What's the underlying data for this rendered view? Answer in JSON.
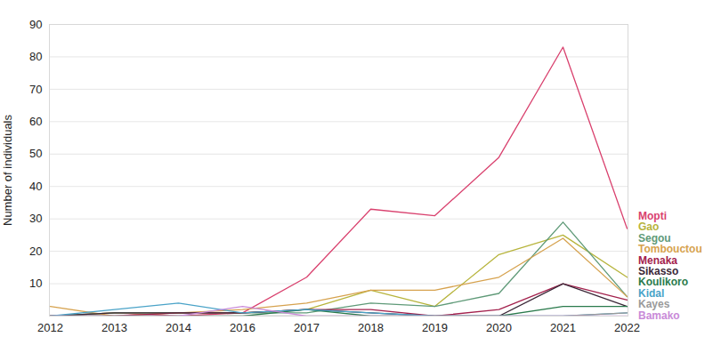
{
  "chart_data": {
    "type": "line",
    "y_label": "Number of individuals",
    "categories": [
      "2012",
      "2013",
      "2014",
      "2016",
      "2017",
      "2018",
      "2019",
      "2020",
      "2021",
      "2022"
    ],
    "series": [
      {
        "name": "Mopti",
        "color": "#d9416e",
        "values": [
          0,
          1,
          0,
          1,
          12,
          33,
          31,
          49,
          83,
          27
        ]
      },
      {
        "name": "Gao",
        "color": "#b7b43c",
        "values": [
          0,
          1,
          1,
          1,
          2,
          8,
          3,
          19,
          25,
          12
        ]
      },
      {
        "name": "Segou",
        "color": "#5f9a78",
        "values": [
          0,
          1,
          1,
          1,
          1,
          4,
          3,
          7,
          29,
          6
        ]
      },
      {
        "name": "Tombouctou",
        "color": "#d6a24e",
        "values": [
          3,
          0,
          1,
          2,
          4,
          8,
          8,
          12,
          24,
          6
        ]
      },
      {
        "name": "Menaka",
        "color": "#a3214d",
        "values": [
          0,
          0,
          1,
          1,
          2,
          2,
          0,
          2,
          10,
          5
        ]
      },
      {
        "name": "Sikasso",
        "color": "#3b2838",
        "values": [
          0,
          1,
          1,
          1,
          2,
          1,
          0,
          0,
          10,
          3
        ]
      },
      {
        "name": "Koulikoro",
        "color": "#2a7a4c",
        "values": [
          0,
          0,
          0,
          0,
          2,
          0,
          0,
          0,
          3,
          3
        ]
      },
      {
        "name": "Kidal",
        "color": "#4aa3c8",
        "values": [
          0,
          2,
          4,
          1,
          2,
          1,
          0,
          0,
          0,
          1
        ]
      },
      {
        "name": "Kayes",
        "color": "#9a9a9a",
        "values": [
          0,
          0,
          0,
          0,
          0,
          0,
          0,
          0,
          0,
          1
        ]
      },
      {
        "name": "Bamako",
        "color": "#c98ad8",
        "values": [
          0,
          0,
          0,
          3,
          0,
          0,
          0,
          0,
          0,
          0
        ]
      }
    ],
    "ylim": [
      0,
      90
    ],
    "yticks": [
      10,
      20,
      30,
      40,
      50,
      60,
      70,
      80,
      90
    ],
    "grid": true,
    "legend": "right"
  }
}
